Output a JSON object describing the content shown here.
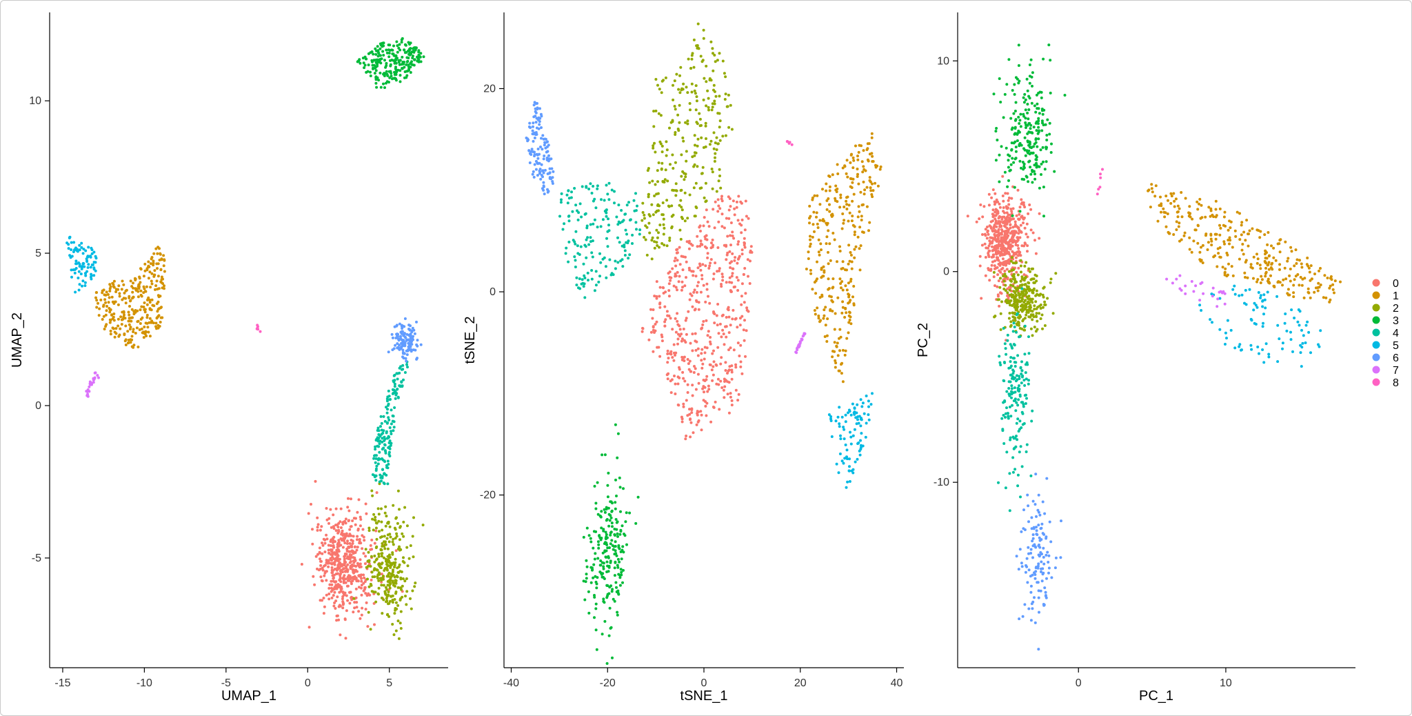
{
  "legend": {
    "clusters": [
      "0",
      "1",
      "2",
      "3",
      "4",
      "5",
      "6",
      "7",
      "8"
    ],
    "colors": [
      "#F8766D",
      "#D39200",
      "#93AA00",
      "#00BA38",
      "#00C19F",
      "#00B9E3",
      "#619CFF",
      "#DB72FB",
      "#FF61C3"
    ]
  },
  "chart_data": [
    {
      "type": "scatter",
      "id": "umap",
      "title": "",
      "xlabel": "UMAP_1",
      "ylabel": "UMAP_2",
      "xlim": [
        -15.8,
        8.6
      ],
      "ylim": [
        -8.6,
        12.9
      ],
      "xticks": [
        -15,
        -10,
        -5,
        0,
        5
      ],
      "yticks": [
        -5,
        0,
        5,
        10
      ],
      "point_counts": [
        520,
        310,
        300,
        230,
        170,
        90,
        130,
        25,
        6
      ],
      "clusters": [
        {
          "cluster": "0",
          "shape": "ellipse",
          "cx": 2.2,
          "cy": -5.2,
          "rx": 1.6,
          "ry": 1.6,
          "rot": 0
        },
        {
          "cluster": "1",
          "shape": "polygon",
          "pts": [
            [
              -13.2,
              3.6
            ],
            [
              -12.4,
              4.0
            ],
            [
              -10.5,
              4.3
            ],
            [
              -9.2,
              5.3
            ],
            [
              -8.7,
              4.8
            ],
            [
              -8.9,
              2.6
            ],
            [
              -10.5,
              1.8
            ],
            [
              -12.5,
              2.4
            ]
          ]
        },
        {
          "cluster": "2",
          "shape": "ellipse",
          "cx": 5.0,
          "cy": -5.3,
          "rx": 1.2,
          "ry": 1.7,
          "rot": 0
        },
        {
          "cluster": "3",
          "shape": "polygon",
          "pts": [
            [
              3.0,
              11.3
            ],
            [
              4.5,
              11.9
            ],
            [
              5.8,
              12.1
            ],
            [
              7.3,
              11.5
            ],
            [
              6.0,
              10.7
            ],
            [
              4.4,
              10.3
            ]
          ]
        },
        {
          "cluster": "4",
          "shape": "polygon",
          "pts": [
            [
              3.8,
              -2.4
            ],
            [
              4.3,
              -0.6
            ],
            [
              5.2,
              0.9
            ],
            [
              5.9,
              1.7
            ],
            [
              6.2,
              1.3
            ],
            [
              5.6,
              0.3
            ],
            [
              5.0,
              -1.8
            ],
            [
              4.9,
              -2.6
            ]
          ]
        },
        {
          "cluster": "5",
          "shape": "polygon",
          "pts": [
            [
              -14.8,
              5.6
            ],
            [
              -13.6,
              5.3
            ],
            [
              -12.8,
              5.1
            ],
            [
              -13.0,
              4.3
            ],
            [
              -13.6,
              3.9
            ],
            [
              -14.3,
              3.6
            ],
            [
              -14.6,
              4.6
            ]
          ]
        },
        {
          "cluster": "6",
          "shape": "ellipse",
          "cx": 6.0,
          "cy": 2.1,
          "rx": 0.7,
          "ry": 0.5,
          "rot": 0
        },
        {
          "cluster": "7",
          "shape": "line",
          "from": [
            -13.5,
            0.4
          ],
          "to": [
            -12.9,
            1.1
          ]
        },
        {
          "cluster": "8",
          "shape": "point",
          "cx": -3.0,
          "cy": 2.5
        }
      ]
    },
    {
      "type": "scatter",
      "id": "tsne",
      "title": "",
      "xlabel": "tSNE_1",
      "ylabel": "tSNE_2",
      "xlim": [
        -41.5,
        41.5
      ],
      "ylim": [
        -37,
        27.5
      ],
      "xticks": [
        -40,
        -20,
        0,
        20,
        40
      ],
      "yticks": [
        -20,
        0,
        20
      ],
      "point_counts": [
        520,
        310,
        300,
        230,
        170,
        90,
        130,
        25,
        6
      ],
      "clusters": [
        {
          "cluster": "0",
          "shape": "polygon",
          "pts": [
            [
              -13,
              -4
            ],
            [
              -10,
              1
            ],
            [
              -8,
              3
            ],
            [
              -4,
              5
            ],
            [
              0,
              8
            ],
            [
              5,
              10
            ],
            [
              9,
              9
            ],
            [
              10,
              4
            ],
            [
              9,
              -5
            ],
            [
              7,
              -12
            ],
            [
              2,
              -13
            ],
            [
              -5,
              -15
            ],
            [
              -8,
              -8
            ]
          ]
        },
        {
          "cluster": "1",
          "shape": "polygon",
          "pts": [
            [
              22,
              9
            ],
            [
              28,
              13
            ],
            [
              35,
              16
            ],
            [
              37,
              12
            ],
            [
              32,
              1
            ],
            [
              30,
              -6
            ],
            [
              29,
              -9
            ],
            [
              26,
              -7
            ],
            [
              23,
              -2
            ],
            [
              21,
              3
            ]
          ]
        },
        {
          "cluster": "2",
          "shape": "polygon",
          "pts": [
            [
              -13,
              8
            ],
            [
              -11,
              14
            ],
            [
              -10,
              21
            ],
            [
              -3,
              23
            ],
            [
              -1,
              27
            ],
            [
              5,
              22
            ],
            [
              6,
              16
            ],
            [
              4,
              10
            ],
            [
              0,
              8
            ],
            [
              -5,
              5
            ],
            [
              -10,
              4
            ],
            [
              -12,
              1
            ]
          ]
        },
        {
          "cluster": "3",
          "shape": "ellipse",
          "cx": -20,
          "cy": -26,
          "rx": 4,
          "ry": 7,
          "rot": -8
        },
        {
          "cluster": "4",
          "shape": "polygon",
          "pts": [
            [
              -30,
              10
            ],
            [
              -22,
              11
            ],
            [
              -14,
              10
            ],
            [
              -13,
              6
            ],
            [
              -16,
              3
            ],
            [
              -21,
              0
            ],
            [
              -25,
              -1
            ],
            [
              -30,
              3
            ]
          ]
        },
        {
          "cluster": "5",
          "shape": "polygon",
          "pts": [
            [
              26,
              -12
            ],
            [
              30,
              -10
            ],
            [
              35,
              -10
            ],
            [
              34,
              -14
            ],
            [
              31,
              -18
            ],
            [
              29,
              -20
            ],
            [
              27,
              -16
            ]
          ]
        },
        {
          "cluster": "6",
          "shape": "polygon",
          "pts": [
            [
              -37,
              15
            ],
            [
              -35,
              19
            ],
            [
              -34,
              18
            ],
            [
              -32,
              14
            ],
            [
              -31,
              11
            ],
            [
              -33,
              9
            ],
            [
              -36,
              12
            ]
          ]
        },
        {
          "cluster": "7",
          "shape": "line",
          "from": [
            19,
            -6
          ],
          "to": [
            21,
            -4
          ]
        },
        {
          "cluster": "8",
          "shape": "line",
          "from": [
            17,
            14.8
          ],
          "to": [
            18.5,
            14.6
          ]
        }
      ]
    },
    {
      "type": "scatter",
      "id": "pca",
      "title": "",
      "xlabel": "PC_1",
      "ylabel": "PC_2",
      "xlim": [
        -8.2,
        18.8
      ],
      "ylim": [
        -18.8,
        12.3
      ],
      "xticks": [
        0,
        10
      ],
      "yticks": [
        -10,
        0,
        10
      ],
      "point_counts": [
        520,
        310,
        300,
        230,
        170,
        90,
        130,
        25,
        6
      ],
      "clusters": [
        {
          "cluster": "0",
          "shape": "ellipse",
          "cx": -5.0,
          "cy": 1.3,
          "rx": 1.3,
          "ry": 2.0,
          "rot": 0
        },
        {
          "cluster": "1",
          "shape": "polygon",
          "pts": [
            [
              4.5,
              4.3
            ],
            [
              9,
              3.5
            ],
            [
              13,
              2
            ],
            [
              16,
              0.5
            ],
            [
              18,
              -0.5
            ],
            [
              17,
              -1.5
            ],
            [
              13,
              -1
            ],
            [
              9,
              0
            ],
            [
              5,
              2.5
            ]
          ]
        },
        {
          "cluster": "2",
          "shape": "ellipse",
          "cx": -3.8,
          "cy": -1.3,
          "rx": 1.3,
          "ry": 1.4,
          "rot": 0
        },
        {
          "cluster": "3",
          "shape": "ellipse",
          "cx": -3.5,
          "cy": 6.5,
          "rx": 1.7,
          "ry": 2.8,
          "rot": 0
        },
        {
          "cluster": "4",
          "shape": "ellipse",
          "cx": -4.3,
          "cy": -5.8,
          "rx": 0.9,
          "ry": 3.2,
          "rot": 0
        },
        {
          "cluster": "5",
          "shape": "polygon",
          "pts": [
            [
              7,
              -1.5
            ],
            [
              11,
              -0.5
            ],
            [
              15,
              -1.5
            ],
            [
              17,
              -3
            ],
            [
              16,
              -4.5
            ],
            [
              13,
              -4.5
            ],
            [
              10,
              -3.5
            ],
            [
              8,
              -2.5
            ]
          ]
        },
        {
          "cluster": "6",
          "shape": "ellipse",
          "cx": -2.8,
          "cy": -13.5,
          "rx": 1.1,
          "ry": 2.8,
          "rot": 0
        },
        {
          "cluster": "7",
          "shape": "polygon",
          "pts": [
            [
              5,
              0
            ],
            [
              7,
              -1
            ],
            [
              10,
              -2
            ],
            [
              10,
              -1
            ],
            [
              7,
              0
            ]
          ]
        },
        {
          "cluster": "8",
          "shape": "line",
          "from": [
            1.3,
            3.5
          ],
          "to": [
            1.6,
            4.8
          ]
        }
      ]
    }
  ]
}
